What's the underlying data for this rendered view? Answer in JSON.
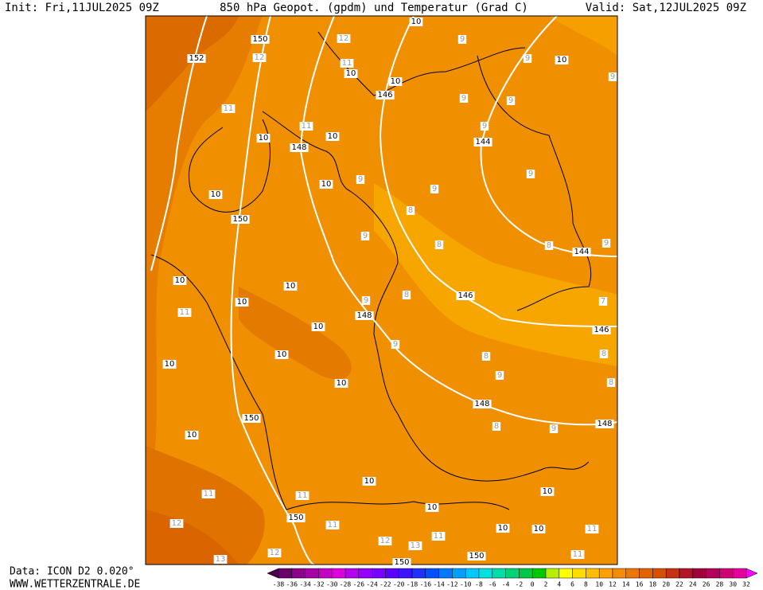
{
  "header": {
    "init": "Init: Fri,11JUL2025 09Z",
    "title": "850 hPa Geopot. (gpdm) und Temperatur (Grad C)",
    "valid": "Valid: Sat,12JUL2025 09Z"
  },
  "footer": {
    "data": "Data: ICON D2 0.020°",
    "site": "WWW.WETTERZENTRALE.DE"
  },
  "colorbar": {
    "labels": [
      "-38",
      "-36",
      "-34",
      "-32",
      "-30",
      "-28",
      "-26",
      "-24",
      "-22",
      "-20",
      "-18",
      "-16",
      "-14",
      "-12",
      "-10",
      "-8",
      "-6",
      "-4",
      "-2",
      "0",
      "2",
      "4",
      "6",
      "8",
      "10",
      "12",
      "14",
      "16",
      "18",
      "20",
      "22",
      "24",
      "26",
      "28",
      "30",
      "32"
    ],
    "colors": [
      "#6a006a",
      "#8c008c",
      "#a800a8",
      "#c400c4",
      "#dc00dc",
      "#b400f0",
      "#9600ff",
      "#7800ff",
      "#5a00ff",
      "#3c14ff",
      "#1e32ff",
      "#0050ff",
      "#0078ff",
      "#00a0ff",
      "#00c8ff",
      "#00e1e1",
      "#00dcaa",
      "#00d278",
      "#00c846",
      "#00c800",
      "#b4f000",
      "#ffff00",
      "#ffdc00",
      "#ffbe00",
      "#ffa000",
      "#f58c00",
      "#eb7800",
      "#e16400",
      "#d75000",
      "#c83214",
      "#b41428",
      "#a0003c",
      "#b4005a",
      "#d20078",
      "#e6009b"
    ]
  },
  "map": {
    "labels": [
      "152",
      "150",
      "12",
      "12",
      "10",
      "9",
      "11",
      "10",
      "10",
      "146",
      "9",
      "10",
      "9",
      "11",
      "11",
      "10",
      "148",
      "10",
      "9",
      "9",
      "9",
      "144",
      "10",
      "10",
      "9",
      "9",
      "9",
      "150",
      "8",
      "9",
      "8",
      "8",
      "144",
      "9",
      "10",
      "10",
      "10",
      "11",
      "9",
      "8",
      "146",
      "7",
      "148",
      "10",
      "146",
      "10",
      "10",
      "9",
      "8",
      "8",
      "9",
      "10",
      "8",
      "148",
      "150",
      "8",
      "9",
      "148",
      "10",
      "10",
      "11",
      "11",
      "10",
      "10",
      "150",
      "12",
      "11",
      "10",
      "10",
      "11",
      "11",
      "12",
      "13",
      "12",
      "150",
      "11",
      "13",
      "150"
    ]
  }
}
